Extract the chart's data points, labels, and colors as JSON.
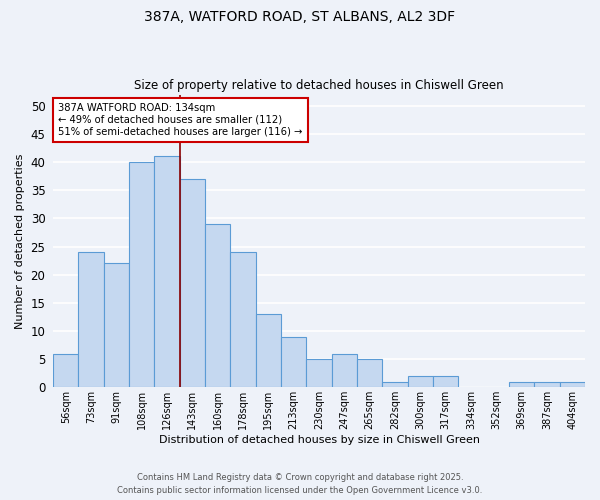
{
  "title_line1": "387A, WATFORD ROAD, ST ALBANS, AL2 3DF",
  "title_line2": "Size of property relative to detached houses in Chiswell Green",
  "xlabel": "Distribution of detached houses by size in Chiswell Green",
  "ylabel": "Number of detached properties",
  "categories": [
    "56sqm",
    "73sqm",
    "91sqm",
    "108sqm",
    "126sqm",
    "143sqm",
    "160sqm",
    "178sqm",
    "195sqm",
    "213sqm",
    "230sqm",
    "247sqm",
    "265sqm",
    "282sqm",
    "300sqm",
    "317sqm",
    "334sqm",
    "352sqm",
    "369sqm",
    "387sqm",
    "404sqm"
  ],
  "values": [
    6,
    24,
    22,
    40,
    41,
    37,
    29,
    24,
    13,
    9,
    5,
    6,
    5,
    1,
    2,
    2,
    0,
    0,
    1,
    1,
    1
  ],
  "bar_color": "#c5d8f0",
  "bar_edge_color": "#5b9bd5",
  "vline_x": 4.5,
  "vline_color": "#8b0000",
  "annotation_text": "387A WATFORD ROAD: 134sqm\n← 49% of detached houses are smaller (112)\n51% of semi-detached houses are larger (116) →",
  "annotation_box_color": "#ffffff",
  "annotation_box_edge": "#cc0000",
  "ylim": [
    0,
    52
  ],
  "yticks": [
    0,
    5,
    10,
    15,
    20,
    25,
    30,
    35,
    40,
    45,
    50
  ],
  "background_color": "#eef2f9",
  "grid_color": "#ffffff",
  "footer_line1": "Contains HM Land Registry data © Crown copyright and database right 2025.",
  "footer_line2": "Contains public sector information licensed under the Open Government Licence v3.0."
}
